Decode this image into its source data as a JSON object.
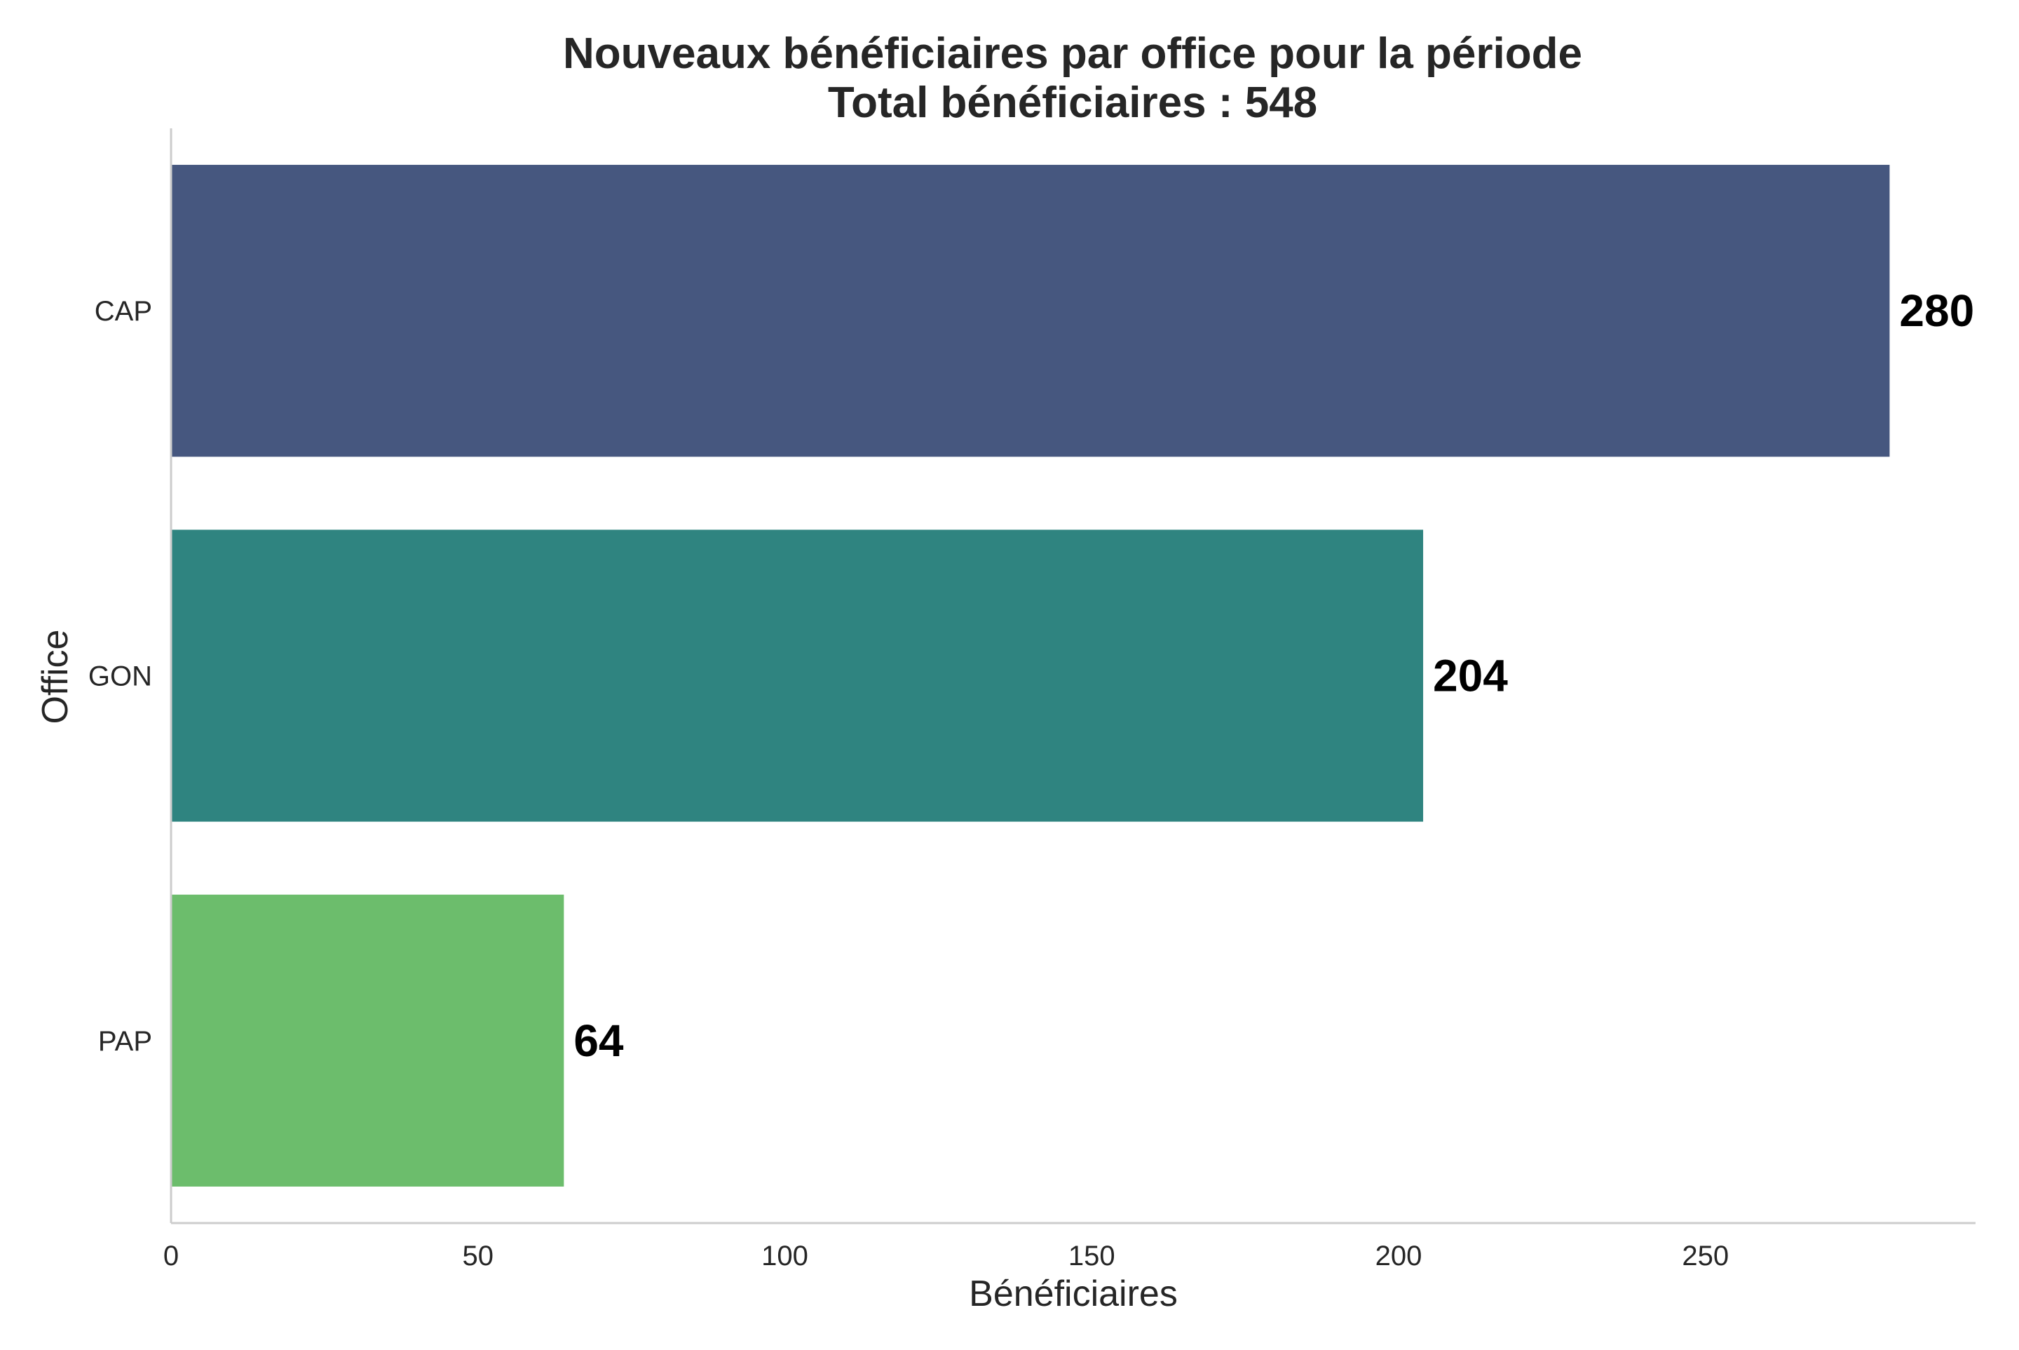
{
  "chart_data": {
    "type": "bar",
    "orientation": "horizontal",
    "title": "Nouveaux bénéficiaires par office pour la période",
    "subtitle": "Total bénéficiaires : 548",
    "xlabel": "Bénéficiaires",
    "ylabel": "Office",
    "categories": [
      "CAP",
      "GON",
      "PAP"
    ],
    "values": [
      280,
      204,
      64
    ],
    "data_labels": [
      "280",
      "204",
      "64"
    ],
    "colors": [
      "#46577f",
      "#2f8480",
      "#6cbd6c"
    ],
    "xlim": [
      0,
      294
    ],
    "xticks": [
      0,
      50,
      100,
      150,
      200,
      250
    ],
    "xtick_labels": [
      "0",
      "50",
      "100",
      "150",
      "200",
      "250"
    ],
    "grid": false,
    "legend": false
  }
}
